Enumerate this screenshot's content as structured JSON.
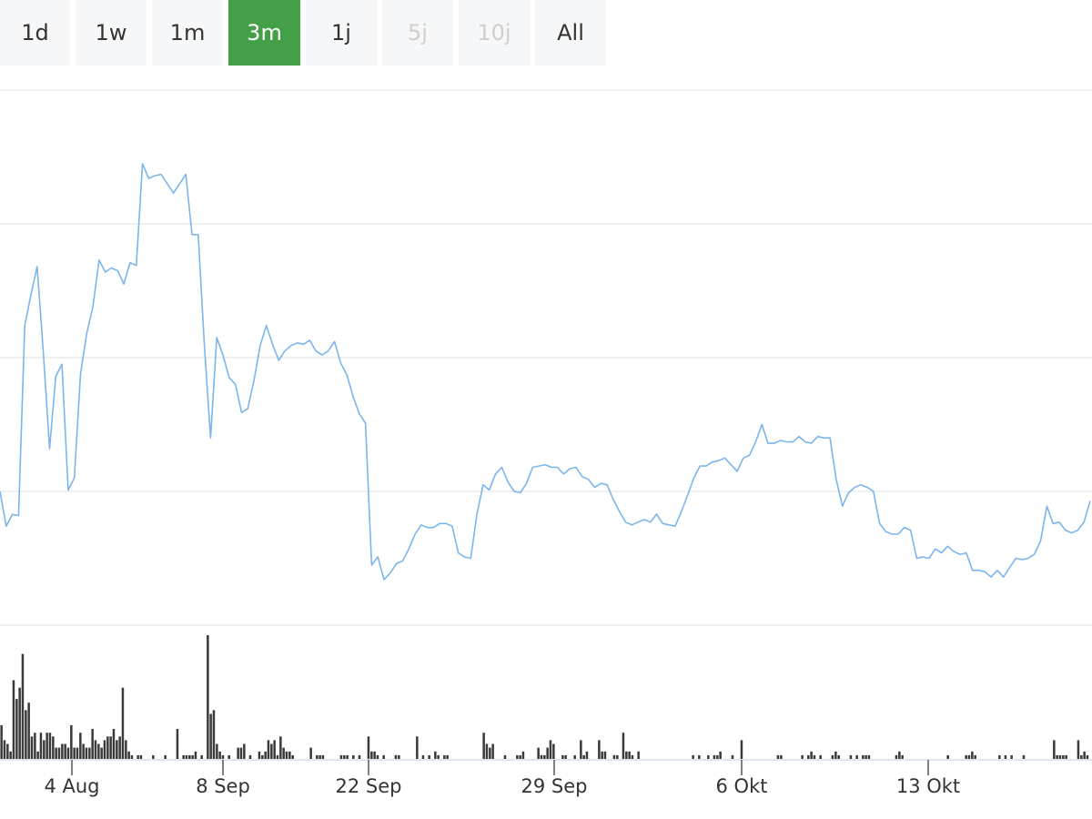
{
  "toolbar": {
    "buttons": [
      {
        "label": "1d",
        "state": "normal"
      },
      {
        "label": "1w",
        "state": "normal"
      },
      {
        "label": "1m",
        "state": "normal"
      },
      {
        "label": "3m",
        "state": "active"
      },
      {
        "label": "1j",
        "state": "normal"
      },
      {
        "label": "5j",
        "state": "disabled"
      },
      {
        "label": "10j",
        "state": "disabled"
      },
      {
        "label": "All",
        "state": "normal"
      }
    ]
  },
  "colors": {
    "active_button": "#43a047",
    "price_line": "#7cb5ec",
    "volume_bars": "#3a3a3a",
    "gridlines": "#e6e6e6"
  },
  "chart_data": {
    "type": "line",
    "title": "",
    "xlabel": "",
    "ylabel": "",
    "grid": true,
    "legend": "none",
    "x_axis_tick_labels": [
      "4 Aug",
      "8 Sep",
      "22 Sep",
      "29 Sep",
      "6 Okt",
      "13 Okt"
    ],
    "series": [
      {
        "type": "line",
        "values": [
          1.0,
          -0.3,
          0.14,
          0.1,
          7.2,
          8.35,
          9.4,
          6.2,
          2.6,
          5.3,
          5.75,
          1.05,
          1.5,
          5.4,
          6.9,
          7.9,
          9.65,
          9.2,
          9.35,
          9.25,
          8.75,
          9.55,
          9.45,
          13.25,
          12.7,
          12.8,
          12.85,
          12.5,
          12.15,
          12.5,
          12.85,
          10.6,
          10.6,
          6.45,
          3.0,
          6.75,
          6.1,
          5.25,
          5.0,
          3.95,
          4.1,
          5.15,
          6.45,
          7.2,
          6.5,
          5.9,
          6.25,
          6.45,
          6.55,
          6.5,
          6.65,
          6.25,
          6.1,
          6.25,
          6.6,
          5.8,
          5.35,
          4.55,
          3.9,
          3.55,
          -1.75,
          -1.45,
          -2.3,
          -2.05,
          -1.7,
          -1.6,
          -1.15,
          -0.6,
          -0.25,
          -0.35,
          -0.35,
          -0.2,
          -0.2,
          -0.3,
          -1.3,
          -1.45,
          -1.5,
          0.15,
          1.25,
          1.05,
          1.65,
          1.9,
          1.35,
          1.0,
          0.95,
          1.3,
          1.9,
          1.95,
          2.0,
          1.9,
          1.9,
          1.65,
          1.85,
          1.9,
          1.55,
          1.45,
          1.15,
          1.3,
          1.25,
          0.7,
          0.25,
          -0.15,
          -0.25,
          -0.15,
          -0.05,
          -0.15,
          0.15,
          -0.2,
          -0.25,
          -0.3,
          0.25,
          0.85,
          1.5,
          1.95,
          1.95,
          2.1,
          2.15,
          2.25,
          2.0,
          1.75,
          2.25,
          2.35,
          2.85,
          3.5,
          2.8,
          2.8,
          2.9,
          2.85,
          2.85,
          3.05,
          2.85,
          2.8,
          3.05,
          3.0,
          3.0,
          1.45,
          0.45,
          0.95,
          1.15,
          1.25,
          1.15,
          1.0,
          -0.2,
          -0.5,
          -0.6,
          -0.6,
          -0.35,
          -0.45,
          -1.5,
          -1.45,
          -1.5,
          -1.15,
          -1.3,
          -1.05,
          -1.25,
          -1.35,
          -1.3,
          -1.95,
          -1.95,
          -2.0,
          -2.2,
          -1.95,
          -2.2,
          -1.85,
          -1.5,
          -1.55,
          -1.5,
          -1.35,
          -0.85,
          0.45,
          -0.2,
          -0.15,
          -0.45,
          -0.55,
          -0.45,
          -0.15,
          0.65
        ]
      },
      {
        "type": "bar",
        "name": "",
        "values": [
          9,
          5,
          4,
          2,
          21,
          16,
          19,
          28,
          13,
          15,
          6,
          7,
          2,
          7,
          5,
          7,
          7,
          6,
          3,
          3,
          4,
          4,
          3,
          9,
          3,
          3,
          7,
          4,
          3,
          3,
          8,
          5,
          4,
          3,
          5,
          6,
          6,
          8,
          5,
          6,
          19,
          5,
          2,
          1,
          0,
          1,
          1,
          0,
          0,
          0,
          1,
          0,
          0,
          0,
          1,
          0,
          0,
          0,
          8,
          0,
          1,
          1,
          1,
          1,
          2,
          0,
          1,
          0,
          33,
          12,
          13,
          4,
          2,
          1,
          0,
          1,
          0,
          0,
          3,
          3,
          4,
          0,
          1,
          0,
          0,
          2,
          1,
          2,
          5,
          4,
          5,
          1,
          6,
          3,
          2,
          2,
          1,
          0,
          0,
          0,
          0,
          0,
          3,
          0,
          1,
          1,
          1,
          0,
          0,
          0,
          0,
          0,
          1,
          1,
          1,
          0,
          1,
          0,
          1,
          0,
          0,
          6,
          2,
          2,
          1,
          0,
          1,
          0,
          0,
          0,
          1,
          1,
          0,
          0,
          0,
          0,
          0,
          6,
          0,
          1,
          0,
          1,
          0,
          2,
          1,
          0,
          1,
          1,
          0,
          0,
          0,
          0,
          0,
          0,
          0,
          0,
          0,
          0,
          0,
          7,
          4,
          3,
          4,
          0,
          0,
          0,
          1,
          0,
          0,
          0,
          1,
          1,
          2,
          0,
          0,
          0,
          0,
          3,
          1,
          1,
          3,
          5,
          4,
          0,
          0,
          1,
          1,
          0,
          0,
          1,
          0,
          5,
          1,
          2,
          0,
          0,
          0,
          5,
          2,
          2,
          0,
          0,
          1,
          1,
          0,
          7,
          2,
          2,
          1,
          0,
          2,
          0,
          0,
          0,
          0,
          0,
          0,
          0,
          0,
          0,
          0,
          0,
          0,
          0,
          0,
          0,
          0,
          0,
          1,
          0,
          1,
          0,
          0,
          1,
          0,
          1,
          1,
          2,
          0,
          0,
          0,
          1,
          0,
          0,
          5,
          0,
          0,
          0,
          0,
          0,
          0,
          0,
          0,
          0,
          0,
          0,
          1,
          1,
          0,
          0,
          0,
          0,
          0,
          0,
          1,
          0,
          1,
          2,
          1,
          0,
          1,
          0,
          0,
          0,
          1,
          2,
          1,
          0,
          0,
          0,
          1,
          0,
          1,
          0,
          1,
          1,
          1,
          0,
          0,
          0,
          0,
          0,
          0,
          0,
          0,
          1,
          2,
          1,
          0,
          0,
          0,
          0,
          0,
          0,
          0,
          0,
          0,
          0,
          0,
          0,
          0,
          0,
          1,
          0,
          0,
          0,
          0,
          0,
          1,
          1,
          2,
          1,
          0,
          0,
          0,
          0,
          0,
          0,
          0,
          1,
          0,
          1,
          0,
          1,
          0,
          0,
          0,
          1,
          0,
          0,
          0,
          0,
          0,
          0,
          0,
          0,
          0,
          5,
          1,
          1,
          1,
          1,
          0,
          0,
          0,
          5,
          1,
          2,
          1,
          0
        ]
      }
    ]
  }
}
